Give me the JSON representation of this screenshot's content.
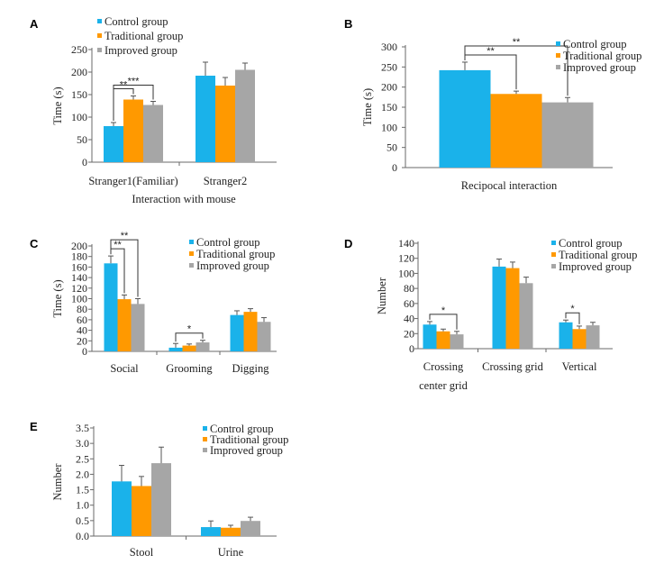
{
  "colors": {
    "Control group": "#1AB2EA",
    "Traditional group": "#FF9900",
    "Improved group": "#A6A6A6",
    "axis": "#6a6a6a",
    "error": "#555555"
  },
  "chart_data": [
    {
      "panel": "A",
      "type": "bar",
      "categories": [
        "Stranger1(Familiar)",
        "Stranger2"
      ],
      "xlabel": "Interaction with mouse",
      "ylabel": "Time (s)",
      "ylim": [
        0,
        250
      ],
      "yticks": [
        0,
        50,
        100,
        150,
        200,
        250
      ],
      "legend": "top-left",
      "series": [
        {
          "name": "Control group",
          "values": [
            80,
            192
          ],
          "errors": [
            8,
            30
          ]
        },
        {
          "name": "Traditional group",
          "values": [
            139,
            170
          ],
          "errors": [
            8,
            18
          ]
        },
        {
          "name": "Improved group",
          "values": [
            127,
            205
          ],
          "errors": [
            8,
            15
          ]
        }
      ],
      "annotations": [
        {
          "text": "**",
          "group": 0,
          "from": 0,
          "to": 1
        },
        {
          "text": "***",
          "group": 0,
          "from": 0,
          "to": 2
        }
      ]
    },
    {
      "panel": "B",
      "type": "bar",
      "categories": [
        ""
      ],
      "xlabel": "Recipocal interaction",
      "ylabel": "Time (s)",
      "ylim": [
        0,
        300
      ],
      "yticks": [
        0,
        50,
        100,
        150,
        200,
        250,
        300
      ],
      "legend": "top-right",
      "series": [
        {
          "name": "Control group",
          "values": [
            242
          ],
          "errors": [
            20
          ]
        },
        {
          "name": "Traditional group",
          "values": [
            183
          ],
          "errors": [
            7
          ]
        },
        {
          "name": "Improved group",
          "values": [
            162
          ],
          "errors": [
            12
          ]
        }
      ],
      "annotations": [
        {
          "text": "**",
          "group": 0,
          "from": 0,
          "to": 1
        },
        {
          "text": "**",
          "group": 0,
          "from": 0,
          "to": 2
        }
      ]
    },
    {
      "panel": "C",
      "type": "bar",
      "categories": [
        "Social",
        "Grooming",
        "Digging"
      ],
      "xlabel": "",
      "ylabel": "Time (s)",
      "ylim": [
        0,
        200
      ],
      "yticks": [
        0,
        20,
        40,
        60,
        80,
        100,
        120,
        140,
        160,
        180,
        200
      ],
      "legend": "top-right",
      "series": [
        {
          "name": "Control group",
          "values": [
            167,
            7,
            69
          ],
          "errors": [
            14,
            8,
            8
          ]
        },
        {
          "name": "Traditional group",
          "values": [
            99,
            11,
            75
          ],
          "errors": [
            8,
            3,
            6
          ]
        },
        {
          "name": "Improved group",
          "values": [
            90,
            17,
            56
          ],
          "errors": [
            10,
            4,
            8
          ]
        }
      ],
      "annotations": [
        {
          "text": "**",
          "group": 0,
          "from": 0,
          "to": 1
        },
        {
          "text": "**",
          "group": 0,
          "from": 0,
          "to": 2
        },
        {
          "text": "*",
          "group": 1,
          "from": 0,
          "to": 2
        }
      ]
    },
    {
      "panel": "D",
      "type": "bar",
      "categories": [
        "Crossing center grid",
        "Crossing grid",
        "Vertical"
      ],
      "xlabel": "",
      "ylabel": "Number",
      "ylim": [
        0,
        140
      ],
      "yticks": [
        0,
        20,
        40,
        60,
        80,
        100,
        120,
        140
      ],
      "legend": "top-right",
      "series": [
        {
          "name": "Control group",
          "values": [
            32,
            109,
            35
          ],
          "errors": [
            4,
            10,
            3
          ]
        },
        {
          "name": "Traditional group",
          "values": [
            23,
            107,
            26
          ],
          "errors": [
            3,
            8,
            4
          ]
        },
        {
          "name": "Improved group",
          "values": [
            19,
            87,
            31
          ],
          "errors": [
            4,
            8,
            4
          ]
        }
      ],
      "annotations": [
        {
          "text": "*",
          "group": 0,
          "from": 0,
          "to": 2
        },
        {
          "text": "*",
          "group": 2,
          "from": 0,
          "to": 1
        }
      ]
    },
    {
      "panel": "E",
      "type": "bar",
      "categories": [
        "Stool",
        "Urine"
      ],
      "xlabel": "",
      "ylabel": "Number",
      "ylim": [
        0,
        3.5
      ],
      "yticks": [
        0,
        0.5,
        1.0,
        1.5,
        2.0,
        2.5,
        3.0,
        3.5
      ],
      "legend": "top-right",
      "series": [
        {
          "name": "Control group",
          "values": [
            1.77,
            0.29
          ],
          "errors": [
            0.52,
            0.2
          ]
        },
        {
          "name": "Traditional group",
          "values": [
            1.62,
            0.27
          ],
          "errors": [
            0.31,
            0.08
          ]
        },
        {
          "name": "Improved group",
          "values": [
            2.36,
            0.49
          ],
          "errors": [
            0.52,
            0.12
          ]
        }
      ],
      "annotations": []
    }
  ]
}
